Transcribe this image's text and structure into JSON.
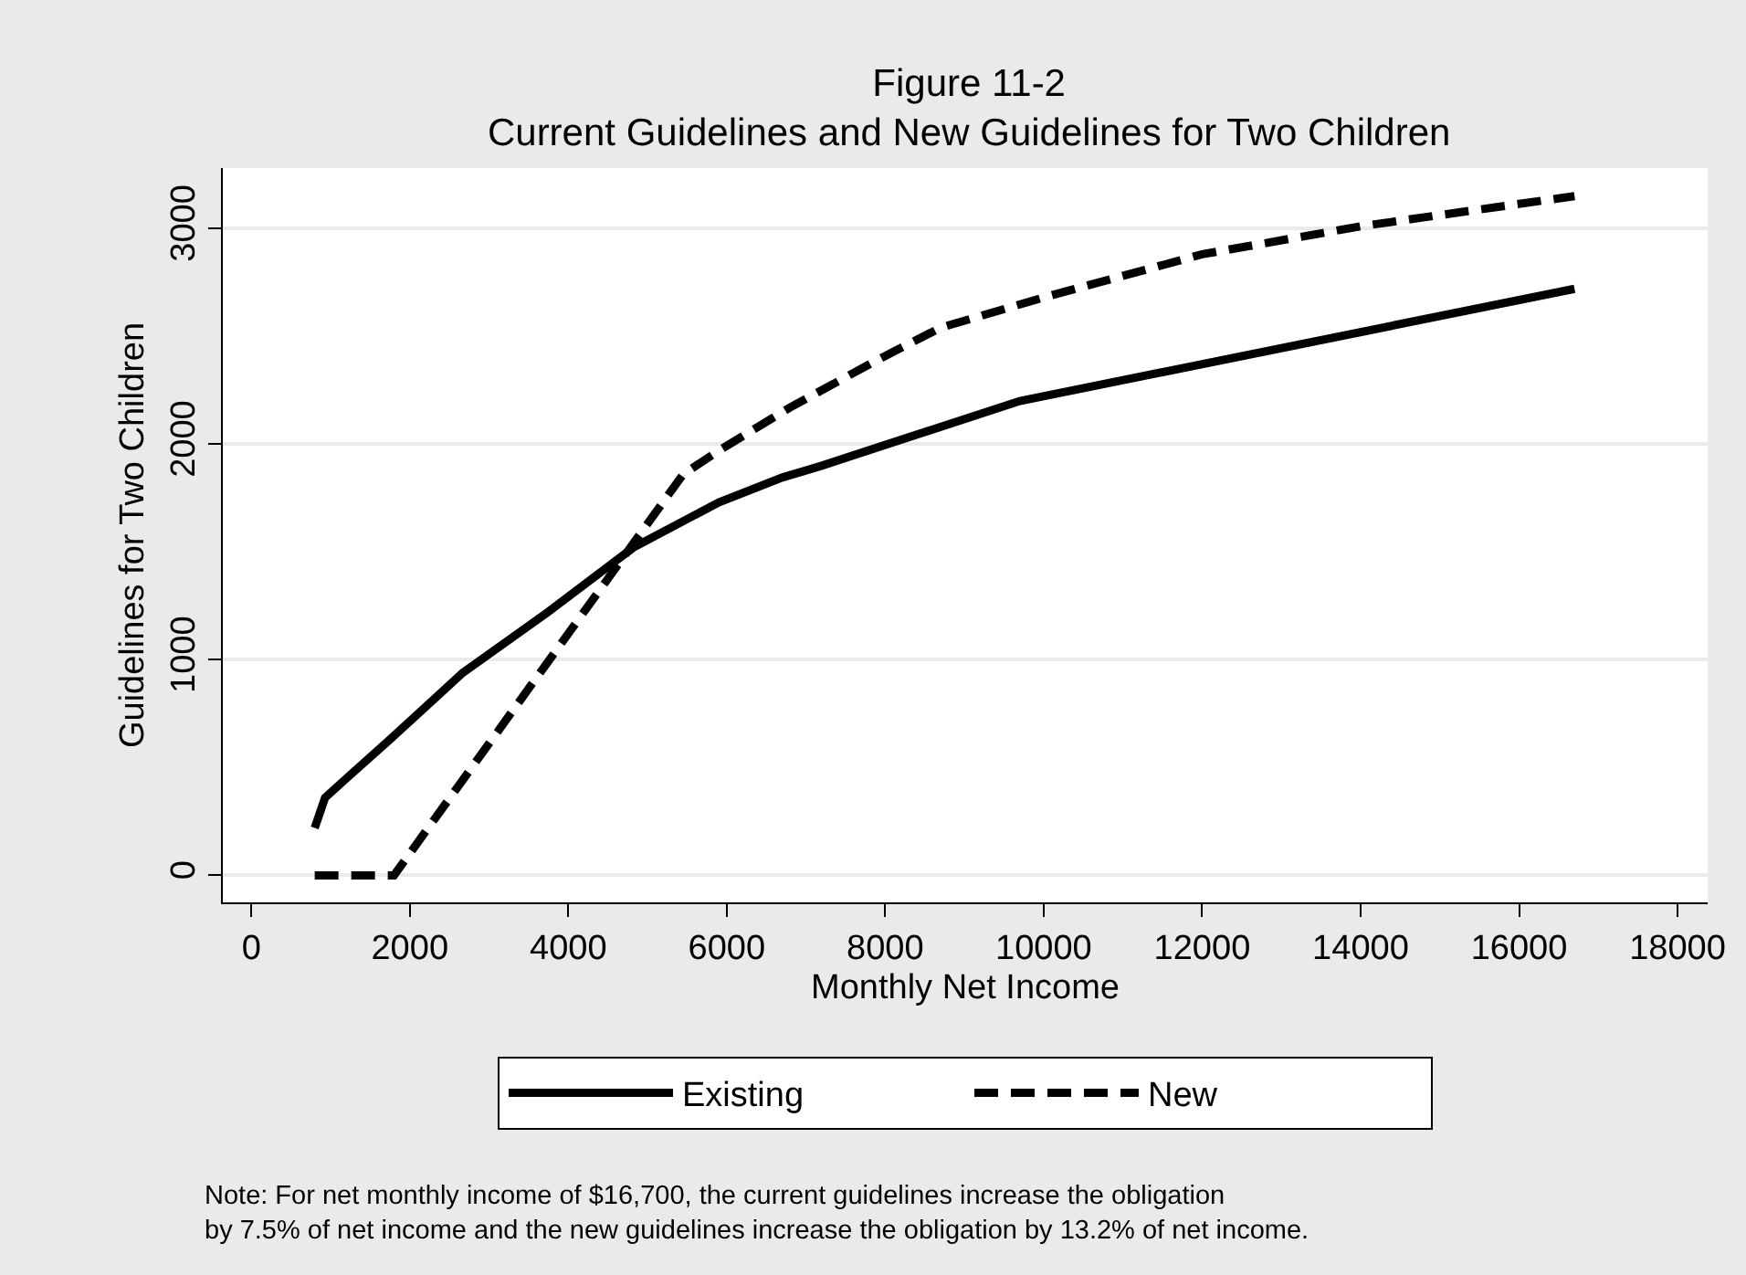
{
  "chart_data": {
    "type": "line",
    "title": "Figure 11-2",
    "subtitle": "Current Guidelines and New Guidelines for Two Children",
    "xlabel": "Monthly Net Income",
    "ylabel": "Guidelines for Two Children",
    "xlim": [
      -360,
      18380
    ],
    "ylim": [
      -125,
      3280
    ],
    "xticks": [
      0,
      2000,
      4000,
      6000,
      8000,
      10000,
      12000,
      14000,
      16000,
      18000
    ],
    "yticks": [
      0,
      1000,
      2000,
      3000
    ],
    "grid": "y",
    "legend": "bottom",
    "marker": "none",
    "series": [
      {
        "name": "Existing",
        "color": "#000000",
        "line_style": "solid",
        "x": [
          800,
          930,
          1200,
          1750,
          2670,
          3740,
          4820,
          5900,
          6700,
          7200,
          9700,
          16700
        ],
        "values": [
          220,
          360,
          450,
          630,
          940,
          1220,
          1520,
          1730,
          1845,
          1900,
          2200,
          2720
        ]
      },
      {
        "name": "New",
        "color": "#000000",
        "line_style": "dashed",
        "x": [
          800,
          1800,
          5450,
          5900,
          6800,
          7900,
          8700,
          10000,
          12000,
          14000,
          16700
        ],
        "values": [
          0,
          0,
          1860,
          1970,
          2170,
          2390,
          2540,
          2680,
          2880,
          3010,
          3150
        ]
      }
    ],
    "annotations": [
      "Note: For net monthly income of $16,700, the current guidelines increase the obligation\nby 7.5% of net income and the new guidelines increase the obligation by 13.2% of net income."
    ]
  }
}
